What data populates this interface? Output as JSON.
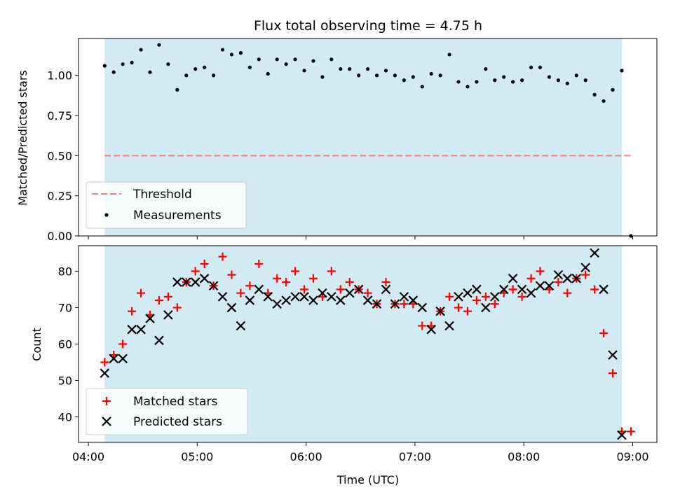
{
  "chart_data": [
    {
      "type": "scatter",
      "title": "Flux total observing time = 4.75 h",
      "xlabel": "",
      "ylabel": "Matched/Predicted stars",
      "xlim": [
        "04:00",
        "09:00"
      ],
      "ylim": [
        0,
        1.23
      ],
      "yticks": [
        "0.00",
        "0.25",
        "0.50",
        "0.75",
        "1.00"
      ],
      "grid": false,
      "legend_position": "lower-left",
      "observing_window": {
        "start": "04:09",
        "end": "08:54",
        "color": "#add8e6"
      },
      "threshold": {
        "name": "Threshold",
        "value": 0.5,
        "x_start": "04:09",
        "x_end": "09:00",
        "color": "#f08080",
        "style": "dashed"
      },
      "series": [
        {
          "name": "Measurements",
          "color": "#000000",
          "marker": "dot",
          "x": [
            "04:09",
            "04:14",
            "04:19",
            "04:24",
            "04:29",
            "04:34",
            "04:39",
            "04:44",
            "04:49",
            "04:54",
            "04:59",
            "05:04",
            "05:09",
            "05:14",
            "05:19",
            "05:24",
            "05:29",
            "05:34",
            "05:39",
            "05:44",
            "05:49",
            "05:54",
            "05:59",
            "06:04",
            "06:09",
            "06:14",
            "06:19",
            "06:24",
            "06:29",
            "06:34",
            "06:39",
            "06:44",
            "06:49",
            "06:54",
            "06:59",
            "07:04",
            "07:09",
            "07:14",
            "07:19",
            "07:24",
            "07:29",
            "07:34",
            "07:39",
            "07:44",
            "07:49",
            "07:54",
            "07:59",
            "08:04",
            "08:09",
            "08:14",
            "08:19",
            "08:24",
            "08:29",
            "08:34",
            "08:39",
            "08:44",
            "08:49",
            "08:54",
            "08:59"
          ],
          "y": [
            1.06,
            1.02,
            1.07,
            1.08,
            1.16,
            1.02,
            1.19,
            1.07,
            0.91,
            1.0,
            1.04,
            1.05,
            1.0,
            1.16,
            1.13,
            1.14,
            1.05,
            1.1,
            1.01,
            1.1,
            1.07,
            1.1,
            1.03,
            1.09,
            0.99,
            1.1,
            1.04,
            1.04,
            1.0,
            1.04,
            1.0,
            1.03,
            1.0,
            0.97,
            0.99,
            0.93,
            1.01,
            1.0,
            1.13,
            0.96,
            0.93,
            0.96,
            1.04,
            0.97,
            0.99,
            0.96,
            0.97,
            1.05,
            1.05,
            0.99,
            0.97,
            0.95,
            1.0,
            0.97,
            0.88,
            0.84,
            0.91,
            1.03,
            0.0
          ]
        }
      ]
    },
    {
      "type": "scatter",
      "title": "",
      "xlabel": "Time (UTC)",
      "ylabel": "Count",
      "xlim": [
        "04:00",
        "09:00"
      ],
      "xticks": [
        "04:00",
        "05:00",
        "06:00",
        "07:00",
        "08:00",
        "09:00"
      ],
      "ylim": [
        33,
        87
      ],
      "yticks": [
        "40",
        "50",
        "60",
        "70",
        "80"
      ],
      "grid": false,
      "legend_position": "lower-left",
      "observing_window": {
        "start": "04:09",
        "end": "08:54",
        "color": "#add8e6"
      },
      "series": [
        {
          "name": "Matched stars",
          "color": "#ff0000",
          "marker": "plus",
          "x": [
            "04:09",
            "04:14",
            "04:19",
            "04:24",
            "04:29",
            "04:34",
            "04:39",
            "04:44",
            "04:49",
            "04:54",
            "04:59",
            "05:04",
            "05:09",
            "05:14",
            "05:19",
            "05:24",
            "05:29",
            "05:34",
            "05:39",
            "05:44",
            "05:49",
            "05:54",
            "05:59",
            "06:04",
            "06:09",
            "06:14",
            "06:19",
            "06:24",
            "06:29",
            "06:34",
            "06:39",
            "06:44",
            "06:49",
            "06:54",
            "06:59",
            "07:04",
            "07:09",
            "07:14",
            "07:19",
            "07:24",
            "07:29",
            "07:34",
            "07:39",
            "07:44",
            "07:49",
            "07:54",
            "07:59",
            "08:04",
            "08:09",
            "08:14",
            "08:19",
            "08:24",
            "08:29",
            "08:34",
            "08:39",
            "08:44",
            "08:49",
            "08:54",
            "08:59"
          ],
          "y": [
            55,
            57,
            60,
            69,
            74,
            68,
            72,
            73,
            70,
            77,
            80,
            82,
            76,
            84,
            79,
            74,
            76,
            82,
            74,
            78,
            77,
            80,
            75,
            78,
            73,
            80,
            75,
            77,
            75,
            74,
            71,
            77,
            71,
            71,
            71,
            65,
            65,
            69,
            73,
            70,
            69,
            72,
            73,
            71,
            74,
            75,
            73,
            78,
            80,
            75,
            77,
            74,
            78,
            79,
            75,
            63,
            52,
            36,
            36
          ]
        },
        {
          "name": "Predicted stars",
          "color": "#000000",
          "marker": "x",
          "x": [
            "04:09",
            "04:14",
            "04:19",
            "04:24",
            "04:29",
            "04:34",
            "04:39",
            "04:44",
            "04:49",
            "04:54",
            "04:59",
            "05:04",
            "05:09",
            "05:14",
            "05:19",
            "05:24",
            "05:29",
            "05:34",
            "05:39",
            "05:44",
            "05:49",
            "05:54",
            "05:59",
            "06:04",
            "06:09",
            "06:14",
            "06:19",
            "06:24",
            "06:29",
            "06:34",
            "06:39",
            "06:44",
            "06:49",
            "06:54",
            "06:59",
            "07:04",
            "07:09",
            "07:14",
            "07:19",
            "07:24",
            "07:29",
            "07:34",
            "07:39",
            "07:44",
            "07:49",
            "07:54",
            "07:59",
            "08:04",
            "08:09",
            "08:14",
            "08:19",
            "08:24",
            "08:29",
            "08:34",
            "08:39",
            "08:44",
            "08:49",
            "08:54"
          ],
          "y": [
            52,
            56,
            56,
            64,
            64,
            67,
            61,
            68,
            77,
            77,
            77,
            78,
            76,
            73,
            70,
            65,
            72,
            75,
            73,
            71,
            72,
            73,
            73,
            72,
            74,
            73,
            72,
            74,
            75,
            72,
            71,
            75,
            71,
            73,
            72,
            70,
            64,
            69,
            65,
            73,
            74,
            75,
            70,
            73,
            75,
            78,
            75,
            74,
            76,
            76,
            79,
            78,
            78,
            81,
            85,
            75,
            57,
            35
          ]
        }
      ]
    }
  ]
}
